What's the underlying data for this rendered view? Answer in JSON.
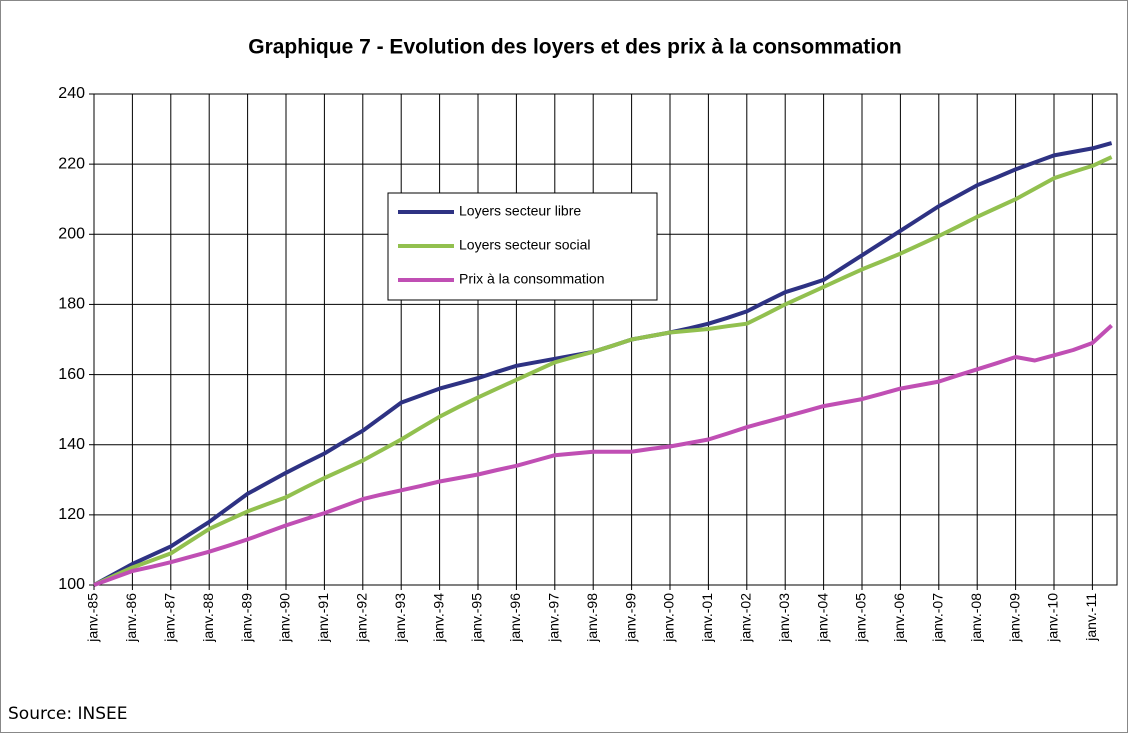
{
  "chart_data": {
    "type": "line",
    "title": "Graphique 7 - Evolution des loyers et des prix à la consommation",
    "categories": [
      "janv.-85",
      null,
      "janv.-86",
      null,
      "janv.-87",
      null,
      "janv.-88",
      null,
      "janv.-89",
      null,
      "janv.-90",
      null,
      "janv.-91",
      null,
      "janv.-92",
      null,
      "janv.-93",
      null,
      "janv.-94",
      null,
      "janv.-95",
      null,
      "janv.-96",
      null,
      "janv.-97",
      null,
      "janv.-98",
      null,
      "janv.-99",
      null,
      "janv.-00",
      null,
      "janv.-01",
      null,
      "janv.-02",
      null,
      "janv.-03",
      null,
      "janv.-04",
      null,
      "janv.-05",
      null,
      "janv.-06",
      null,
      "janv.-07",
      null,
      "janv.-08",
      null,
      "janv.-09",
      null,
      "janv.-10",
      null,
      "janv.-11",
      null
    ],
    "series": [
      {
        "name": "Loyers secteur libre",
        "color": "#2e3283",
        "values": [
          100,
          103,
          106,
          108.5,
          111,
          114.5,
          118,
          122,
          126,
          129,
          132,
          134.8,
          137.5,
          140.8,
          144,
          148,
          152,
          154,
          156,
          157.5,
          159,
          160.8,
          162.5,
          163.5,
          164.5,
          165.5,
          166.5,
          168.2,
          170,
          171,
          172,
          173.2,
          174.5,
          176.2,
          178,
          180.8,
          183.5,
          185.2,
          187,
          190.5,
          194,
          197.5,
          201,
          204.5,
          208,
          211,
          214,
          216.2,
          218.5,
          220.5,
          222.5,
          223.5,
          224.5,
          226
        ]
      },
      {
        "name": "Loyers secteur social",
        "color": "#92c04f",
        "values": [
          100,
          102.5,
          105,
          107,
          109,
          112.5,
          116,
          118.5,
          121,
          123,
          125,
          127.8,
          130.5,
          133,
          135.5,
          138.5,
          141.5,
          144.8,
          148,
          150.8,
          153.5,
          156,
          158.5,
          161,
          163.5,
          165,
          166.5,
          168.2,
          170,
          171,
          172,
          172.5,
          173,
          173.8,
          174.5,
          177.2,
          180,
          182.5,
          185,
          187.5,
          190,
          192.2,
          194.5,
          197,
          199.5,
          202.2,
          205,
          207.5,
          210,
          213,
          216,
          217.8,
          219.5,
          222
        ]
      },
      {
        "name": "Prix à la consommation",
        "color": "#c04fb4",
        "values": [
          100,
          102,
          104,
          105.2,
          106.5,
          108,
          109.5,
          111.2,
          113,
          115,
          117,
          118.8,
          120.5,
          122.5,
          124.5,
          125.8,
          127,
          128.2,
          129.5,
          130.5,
          131.5,
          132.8,
          134,
          135.5,
          137,
          137.5,
          138,
          138,
          138,
          138.8,
          139.5,
          140.5,
          141.5,
          143.2,
          145,
          146.5,
          148,
          149.5,
          151,
          152,
          153,
          154.5,
          156,
          157,
          158,
          159.8,
          161.5,
          163.2,
          165,
          164,
          165.5,
          167,
          169,
          174
        ]
      }
    ],
    "ylim": [
      100,
      240
    ],
    "yticks": [
      100,
      120,
      140,
      160,
      180,
      200,
      220,
      240
    ],
    "grid": true,
    "legend": "center",
    "source": "Source: INSEE"
  }
}
